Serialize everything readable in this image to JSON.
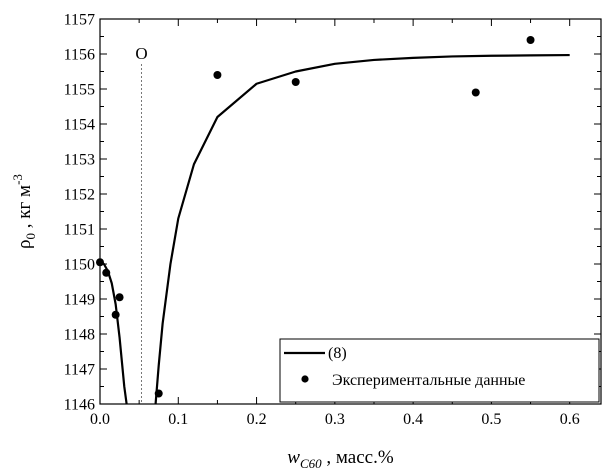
{
  "chart_data": {
    "type": "scatter",
    "title": "",
    "xlabel": {
      "base": "w",
      "sub": "C60",
      "rest": " , масс.%"
    },
    "ylabel": {
      "base": "ρ",
      "sub": "0",
      "rest": " , кг м",
      "sup": "-3"
    },
    "xlim": [
      0.0,
      0.64
    ],
    "ylim": [
      1146,
      1157
    ],
    "xticks": [
      0.0,
      0.1,
      0.2,
      0.3,
      0.4,
      0.5,
      0.6
    ],
    "xtick_labels": [
      "0.0",
      "0.1",
      "0.2",
      "0.3",
      "0.4",
      "0.5",
      "0.6"
    ],
    "yticks": [
      1146,
      1147,
      1148,
      1149,
      1150,
      1151,
      1152,
      1153,
      1154,
      1155,
      1156,
      1157
    ],
    "ytick_labels": [
      "1146",
      "1147",
      "1148",
      "1149",
      "1150",
      "1151",
      "1152",
      "1153",
      "1154",
      "1155",
      "1156",
      "1157"
    ],
    "grid": false,
    "legend_position": "bottom-right",
    "series": [
      {
        "name": "(8)",
        "kind": "line",
        "segments": [
          {
            "x": [
              0.0,
              0.005,
              0.01,
              0.015,
              0.02,
              0.025,
              0.028,
              0.031,
              0.034
            ],
            "y": [
              1150.05,
              1150.0,
              1149.8,
              1149.45,
              1148.85,
              1147.9,
              1147.2,
              1146.5,
              1146.0
            ]
          },
          {
            "x": [
              0.071,
              0.075,
              0.08,
              0.09,
              0.1,
              0.12,
              0.15,
              0.2,
              0.25,
              0.3,
              0.35,
              0.4,
              0.45,
              0.5,
              0.55,
              0.6
            ],
            "y": [
              1146.0,
              1147.1,
              1148.3,
              1150.0,
              1151.3,
              1152.85,
              1154.2,
              1155.15,
              1155.5,
              1155.72,
              1155.83,
              1155.89,
              1155.93,
              1155.95,
              1155.96,
              1155.97
            ]
          }
        ]
      },
      {
        "name": "Экспериментальные данные",
        "kind": "scatter",
        "x": [
          0.0,
          0.008,
          0.02,
          0.025,
          0.075,
          0.15,
          0.25,
          0.48,
          0.55
        ],
        "y": [
          1150.05,
          1149.75,
          1148.55,
          1149.05,
          1146.3,
          1155.4,
          1155.2,
          1154.9,
          1156.4
        ]
      }
    ],
    "annotations": [
      {
        "text": "O",
        "x": 0.053,
        "style": "dotted-vertical-line"
      }
    ]
  }
}
